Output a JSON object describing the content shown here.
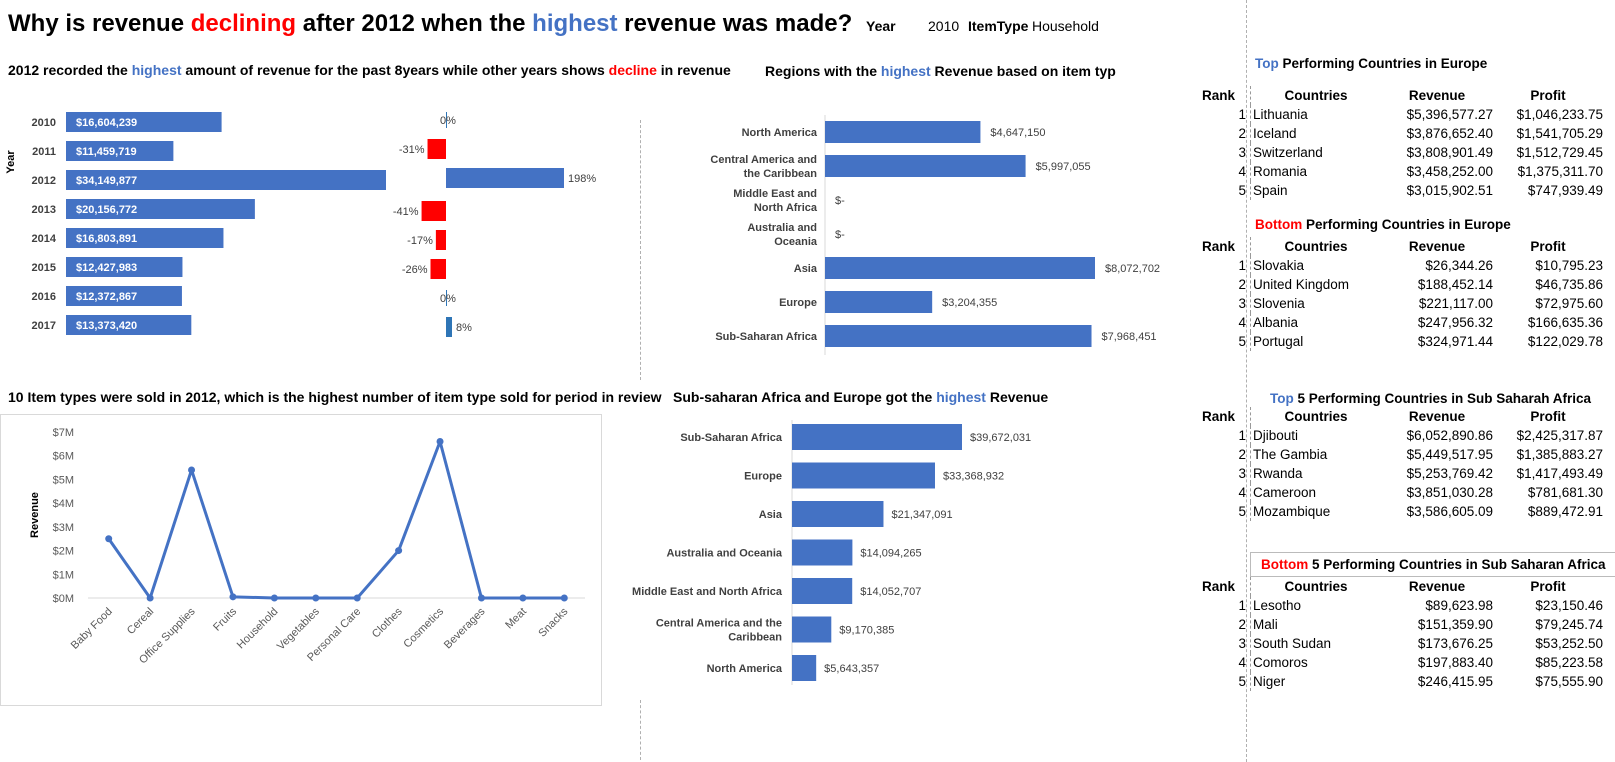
{
  "header": {
    "title_parts": [
      "Why is revenue ",
      "declining",
      " after 2012 when the ",
      "highest",
      " revenue was made?"
    ],
    "filter_year_label": "Year",
    "filter_year_value": "2010",
    "filter_itemtype_label": "ItemType",
    "filter_itemtype_value": "Household"
  },
  "subtitles": {
    "yearly": [
      "2012 recorded the ",
      "highest",
      " amount of revenue for the past 8years while other years shows ",
      "decline",
      " in revenue"
    ],
    "regions_item": [
      "Regions with the ",
      "highest",
      " Revenue based on item typ"
    ],
    "item_types": "10 Item types were sold in 2012, which is the highest number of item type sold for  period in review",
    "regions_total": [
      "Sub-saharan Africa and Europe got the ",
      "highest",
      " Revenue"
    ]
  },
  "colors": {
    "accent_blue": "#4472c4",
    "negative_red": "#ff0000",
    "positive_small": "#2e75b6"
  },
  "chart_data": [
    {
      "id": "revenue_by_year",
      "type": "bar",
      "orientation": "horizontal",
      "ylabel": "Year",
      "categories": [
        "2010",
        "2011",
        "2012",
        "2013",
        "2014",
        "2015",
        "2016",
        "2017"
      ],
      "values": [
        16604239,
        11459719,
        34149877,
        20156772,
        16803891,
        12427983,
        12372867,
        13373420
      ],
      "labels": [
        "$16,604,239",
        "$11,459,719",
        "$34,149,877",
        "$20,156,772",
        "$16,803,891",
        "$12,427,983",
        "$12,372,867",
        "$13,373,420"
      ]
    },
    {
      "id": "yoy_change",
      "type": "bar",
      "orientation": "horizontal",
      "categories": [
        "2010",
        "2011",
        "2012",
        "2013",
        "2014",
        "2015",
        "2016",
        "2017"
      ],
      "values": [
        0,
        -31,
        198,
        -41,
        -17,
        -26,
        0,
        8
      ],
      "labels": [
        "0%",
        "-31%",
        "198%",
        "-41%",
        "-17%",
        "-26%",
        "0%",
        "8%"
      ]
    },
    {
      "id": "regions_by_item_type",
      "type": "bar",
      "orientation": "horizontal",
      "categories": [
        "North America",
        "Central America and the Caribbean",
        "Middle East and North Africa",
        "Australia and Oceania",
        "Asia",
        "Europe",
        "Sub-Saharan Africa"
      ],
      "values": [
        4647150,
        5997055,
        0,
        0,
        8072702,
        3204355,
        7968451
      ],
      "labels": [
        "$4,647,150",
        "$5,997,055",
        "$-",
        "$-",
        "$8,072,702",
        "$3,204,355",
        "$7,968,451"
      ]
    },
    {
      "id": "item_types_2012",
      "type": "line",
      "ylabel": "Revenue",
      "categories": [
        "Baby Food",
        "Cereal",
        "Office Supplies",
        "Fruits",
        "Household",
        "Vegetables",
        "Personal Care",
        "Clothes",
        "Cosmetics",
        "Beverages",
        "Meat",
        "Snacks"
      ],
      "values": [
        2500000,
        0,
        5400000,
        50000,
        0,
        0,
        0,
        2000000,
        6600000,
        0,
        0,
        0
      ],
      "yticks": [
        "$0M",
        "$1M",
        "$2M",
        "$3M",
        "$4M",
        "$5M",
        "$6M",
        "$7M"
      ],
      "ylim": [
        0,
        7000000
      ],
      "grid": false
    },
    {
      "id": "regions_total",
      "type": "bar",
      "orientation": "horizontal",
      "categories": [
        "Sub-Saharan Africa",
        "Europe",
        "Asia",
        "Australia and Oceania",
        "Middle East and North Africa",
        "Central America and the Caribbean",
        "North America"
      ],
      "values": [
        39672031,
        33368932,
        21347091,
        14094265,
        14052707,
        9170385,
        5643357
      ],
      "labels": [
        "$39,672,031",
        "$33,368,932",
        "$21,347,091",
        "$14,094,265",
        "$14,052,707",
        "$9,170,385",
        "$5,643,357"
      ]
    }
  ],
  "tables": [
    {
      "title_parts": [
        "Top",
        " Performing Countries in Europe"
      ],
      "title_color": "blue",
      "columns": [
        "Rank",
        "Countries",
        "Revenue",
        "Profit"
      ],
      "rows": [
        [
          "1",
          "Lithuania",
          "$5,396,577.27",
          "$1,046,233.75"
        ],
        [
          "2",
          "Iceland",
          "$3,876,652.40",
          "$1,541,705.29"
        ],
        [
          "3",
          "Switzerland",
          "$3,808,901.49",
          "$1,512,729.45"
        ],
        [
          "4",
          "Romania",
          "$3,458,252.00",
          "$1,375,311.70"
        ],
        [
          "5",
          "Spain",
          "$3,015,902.51",
          "$747,939.49"
        ]
      ]
    },
    {
      "title_parts": [
        "Bottom",
        " Performing Countries in Europe"
      ],
      "title_color": "red",
      "columns": [
        "Rank",
        "Countries",
        "Revenue",
        "Profit"
      ],
      "rows": [
        [
          "1",
          "Slovakia",
          "$26,344.26",
          "$10,795.23"
        ],
        [
          "2",
          "United Kingdom",
          "$188,452.14",
          "$46,735.86"
        ],
        [
          "3",
          "Slovenia",
          "$221,117.00",
          "$72,975.60"
        ],
        [
          "4",
          "Albania",
          "$247,956.32",
          "$166,635.36"
        ],
        [
          "5",
          "Portugal",
          "$324,971.44",
          "$122,029.78"
        ]
      ]
    },
    {
      "title_parts": [
        "Top",
        " 5 Performing Countries in Sub Saharah Africa"
      ],
      "title_color": "blue",
      "columns": [
        "Rank",
        "Countries",
        "Revenue",
        "Profit"
      ],
      "rows": [
        [
          "1",
          "Djibouti",
          "$6,052,890.86",
          "$2,425,317.87"
        ],
        [
          "2",
          "The Gambia",
          "$5,449,517.95",
          "$1,385,883.27"
        ],
        [
          "3",
          "Rwanda",
          "$5,253,769.42",
          "$1,417,493.49"
        ],
        [
          "4",
          "Cameroon",
          "$3,851,030.28",
          "$781,681.30"
        ],
        [
          "5",
          "Mozambique",
          "$3,586,605.09",
          "$889,472.91"
        ]
      ]
    },
    {
      "title_parts": [
        "Bottom",
        " 5 Performing Countries in Sub Saharan Africa"
      ],
      "title_color": "red",
      "columns": [
        "Rank",
        "Countries",
        "Revenue",
        "Profit"
      ],
      "rows": [
        [
          "1",
          "Lesotho",
          "$89,623.98",
          "$23,150.46"
        ],
        [
          "2",
          "Mali",
          "$151,359.90",
          "$79,245.74"
        ],
        [
          "3",
          "South Sudan",
          "$173,676.25",
          "$53,252.50"
        ],
        [
          "4",
          "Comoros",
          "$197,883.40",
          "$85,223.58"
        ],
        [
          "5",
          "Niger",
          "$246,415.95",
          "$75,555.90"
        ]
      ]
    }
  ]
}
